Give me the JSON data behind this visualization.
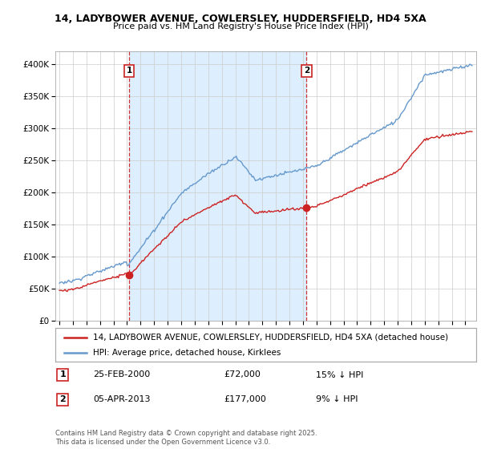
{
  "title": "14, LADYBOWER AVENUE, COWLERSLEY, HUDDERSFIELD, HD4 5XA",
  "subtitle": "Price paid vs. HM Land Registry's House Price Index (HPI)",
  "ylim": [
    0,
    420000
  ],
  "yticks": [
    0,
    50000,
    100000,
    150000,
    200000,
    250000,
    300000,
    350000,
    400000
  ],
  "sale1_date": 2000.15,
  "sale1_price": 72000,
  "sale1_label": "1",
  "sale2_date": 2013.27,
  "sale2_price": 177000,
  "sale2_label": "2",
  "red_line_color": "#cc2222",
  "blue_line_color": "#6699cc",
  "shade_color": "#ddeeff",
  "vline_color": "#cc2222",
  "grid_color": "#cccccc",
  "legend_label_red": "14, LADYBOWER AVENUE, COWLERSLEY, HUDDERSFIELD, HD4 5XA (detached house)",
  "legend_label_blue": "HPI: Average price, detached house, Kirklees",
  "note1_label": "1",
  "note1_date": "25-FEB-2000",
  "note1_price": "£72,000",
  "note1_hpi": "15% ↓ HPI",
  "note2_label": "2",
  "note2_date": "05-APR-2013",
  "note2_price": "£177,000",
  "note2_hpi": "9% ↓ HPI",
  "footer": "Contains HM Land Registry data © Crown copyright and database right 2025.\nThis data is licensed under the Open Government Licence v3.0."
}
